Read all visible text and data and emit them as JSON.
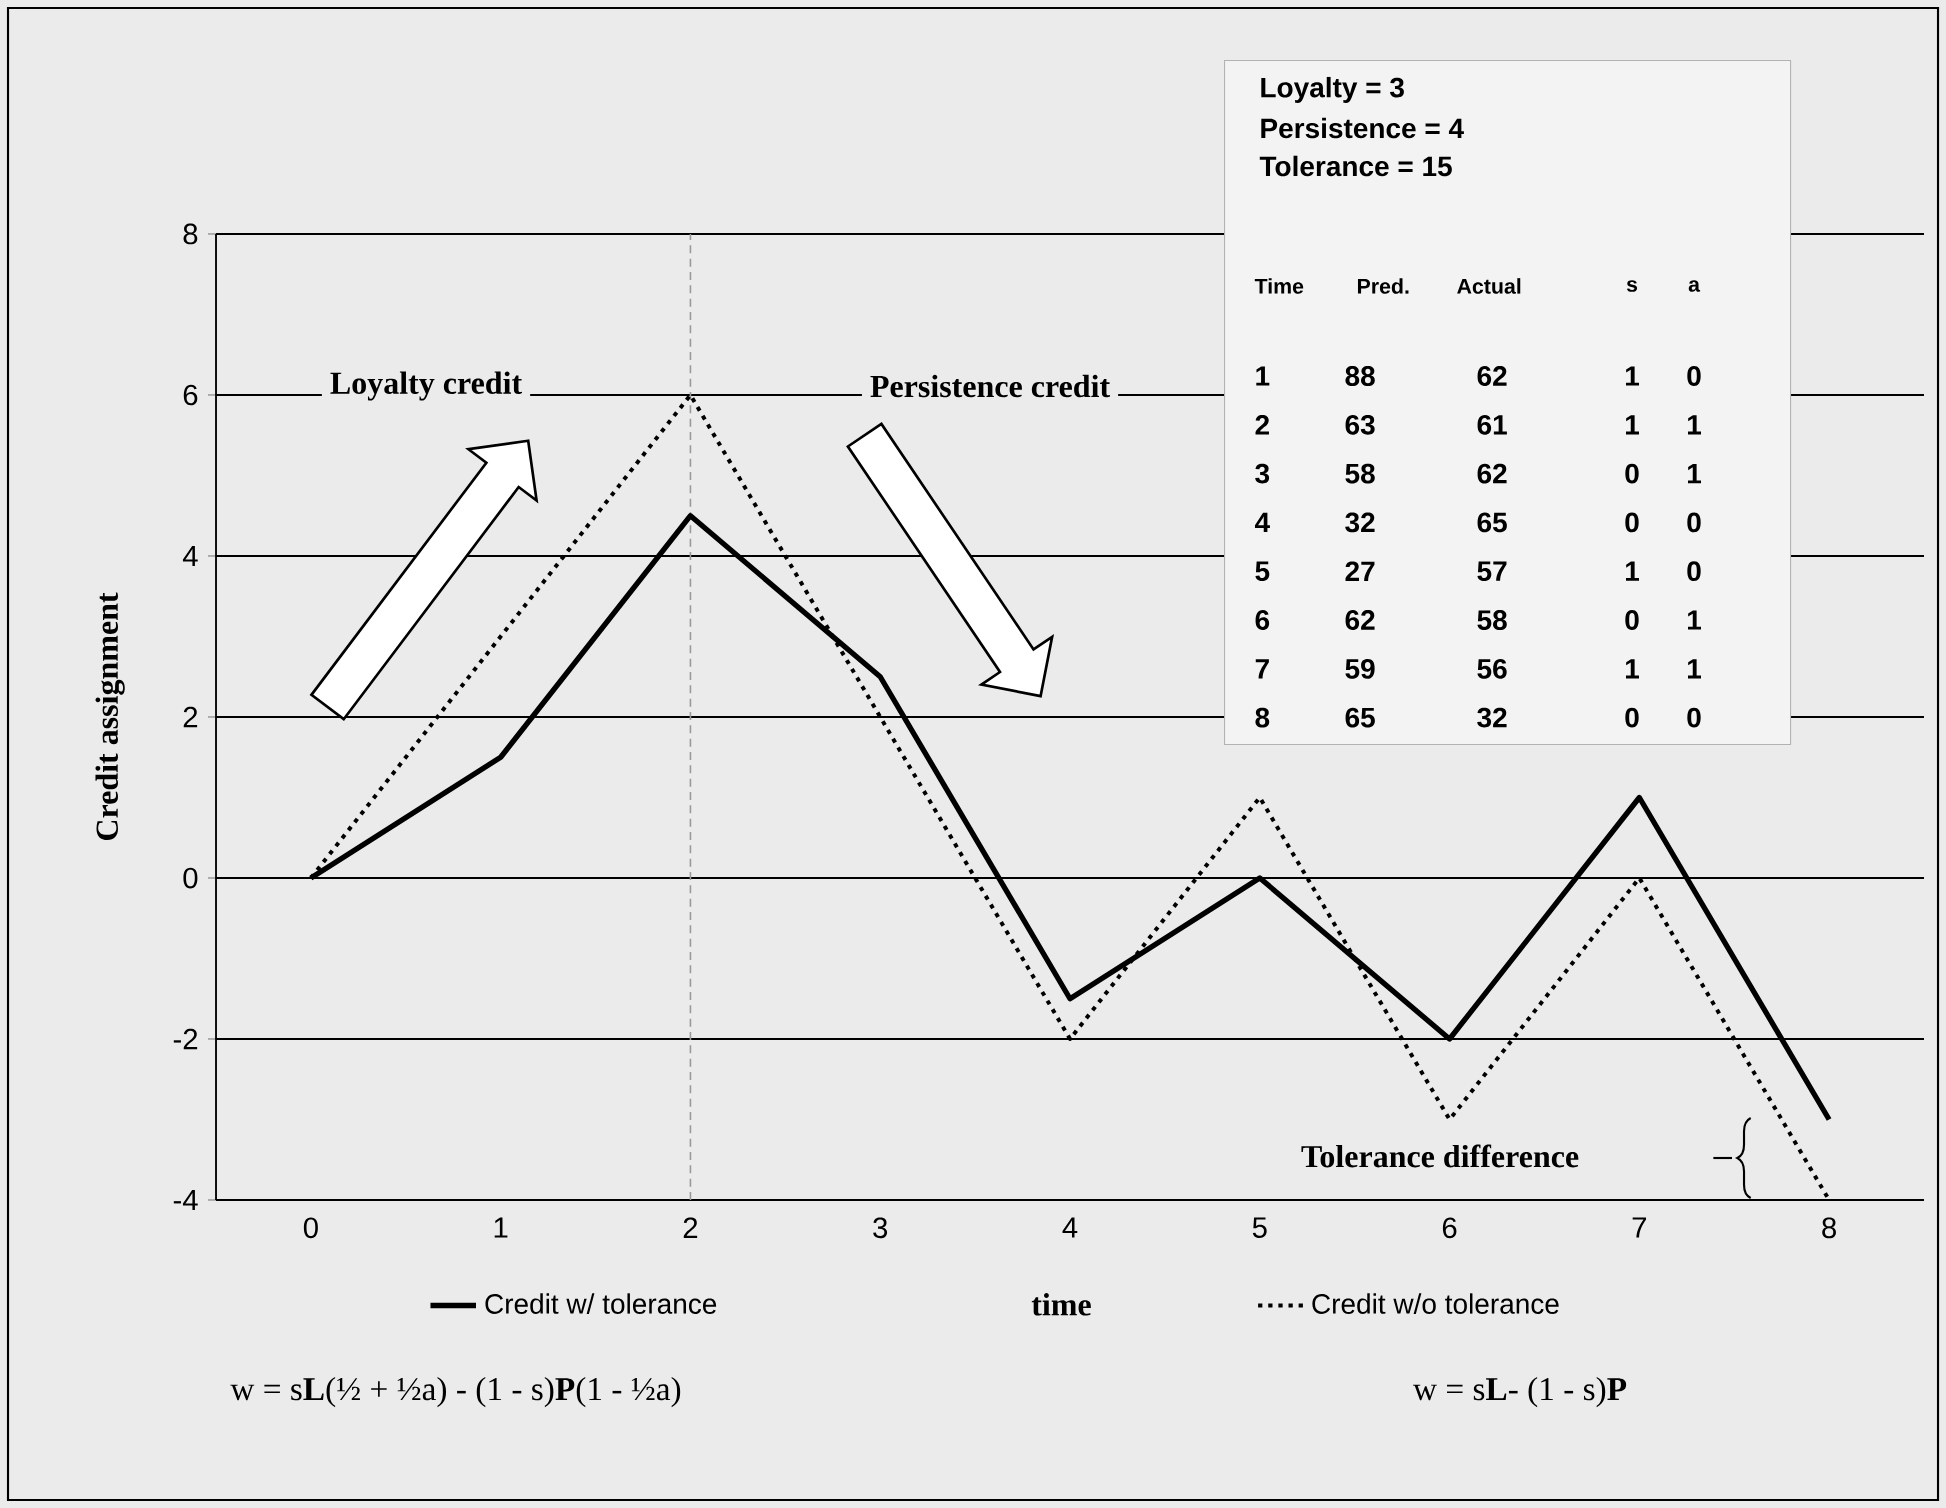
{
  "chart_data": {
    "type": "line",
    "xlabel": "time",
    "ylabel": "Credit assignment",
    "x": [
      0,
      1,
      2,
      3,
      4,
      5,
      6,
      7,
      8
    ],
    "xlim": [
      -0.5,
      8.5
    ],
    "xticks": [
      0,
      1,
      2,
      3,
      4,
      5,
      6,
      7,
      8
    ],
    "ylim": [
      -4,
      8
    ],
    "yticks": [
      -4,
      -2,
      0,
      2,
      4,
      6,
      8
    ],
    "grid": "y",
    "legend": "bottom",
    "series": [
      {
        "name": "Credit w/ tolerance",
        "color": "#000000",
        "line_style": "solid",
        "values": [
          0,
          1.5,
          4.5,
          2.5,
          -1.5,
          0,
          -2,
          1,
          -3
        ]
      },
      {
        "name": "Credit w/o tolerance",
        "color": "#000000",
        "line_style": "dotted",
        "values": [
          0,
          3,
          6,
          2,
          -2,
          1,
          -3,
          0,
          -4
        ]
      }
    ],
    "ref_lines": [
      {
        "axis": "x",
        "value": 2,
        "color": "#9a9a9a",
        "line_style": "dashed"
      }
    ],
    "annotations": [
      "Loyalty credit",
      "Persistence credit",
      "Tolerance difference",
      "w = s**L**(½ + ½a) - (1 - s)**P**(1 - ½a)",
      "w = s**L**- (1 - s)**P**",
      "Loyalty = 3",
      "Persistence = 4",
      "Tolerance = 15",
      "Time",
      "Pred.",
      "Actual",
      "s",
      "a",
      "1",
      "88",
      "62",
      "1",
      "0",
      "2",
      "63",
      "61",
      "1",
      "1",
      "3",
      "58",
      "62",
      "0",
      "1",
      "4",
      "32",
      "65",
      "0",
      "0",
      "5",
      "27",
      "57",
      "1",
      "0",
      "6",
      "62",
      "58",
      "0",
      "1",
      "7",
      "59",
      "56",
      "1",
      "1",
      "8",
      "65",
      "32",
      "0",
      "0"
    ]
  }
}
